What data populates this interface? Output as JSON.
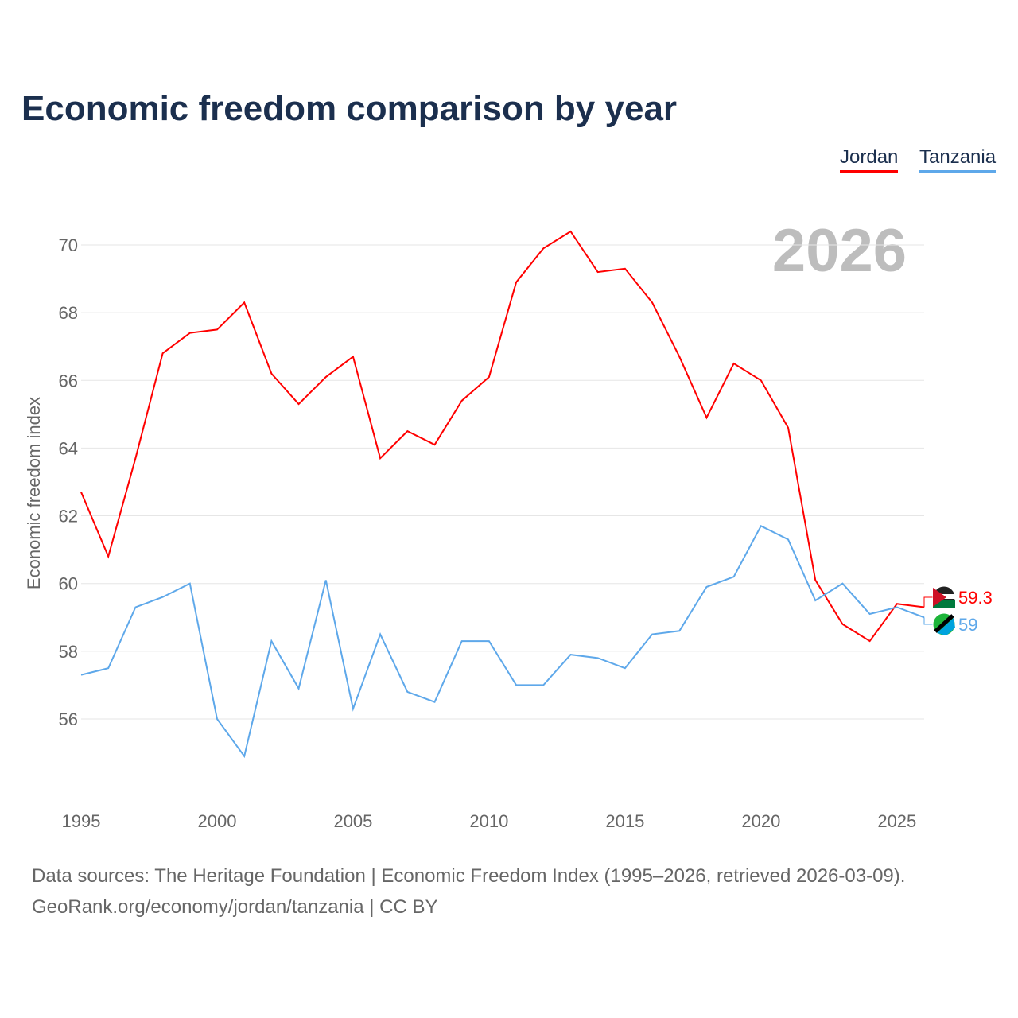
{
  "chart_data": {
    "type": "line",
    "title": "Economic freedom comparison by year",
    "xlabel": "",
    "ylabel": "Economic freedom index",
    "year_label": "2026",
    "x": [
      1995,
      1996,
      1997,
      1998,
      1999,
      2000,
      2001,
      2002,
      2003,
      2004,
      2005,
      2006,
      2007,
      2008,
      2009,
      2010,
      2011,
      2012,
      2013,
      2014,
      2015,
      2016,
      2017,
      2018,
      2019,
      2020,
      2021,
      2022,
      2023,
      2024,
      2025,
      2026
    ],
    "xlim": [
      1995,
      2026
    ],
    "ylim": [
      54,
      71.5
    ],
    "x_ticks": [
      1995,
      2000,
      2005,
      2010,
      2015,
      2020,
      2025
    ],
    "y_ticks": [
      56,
      58,
      60,
      62,
      64,
      66,
      68,
      70
    ],
    "grid": true,
    "legend": "top-right",
    "series": [
      {
        "name": "Jordan",
        "color": "#ff0000",
        "end_label": "59.3",
        "values": [
          62.7,
          60.8,
          63.7,
          66.8,
          67.4,
          67.5,
          68.3,
          66.2,
          65.3,
          66.1,
          66.7,
          63.7,
          64.5,
          64.1,
          65.4,
          66.1,
          68.9,
          69.9,
          70.4,
          69.2,
          69.3,
          68.3,
          66.7,
          64.9,
          66.5,
          66.0,
          64.6,
          60.1,
          58.8,
          58.3,
          59.4,
          59.3
        ]
      },
      {
        "name": "Tanzania",
        "color": "#5ea8ea",
        "end_label": "59",
        "values": [
          57.3,
          57.5,
          59.3,
          59.6,
          60.0,
          56.0,
          54.9,
          58.3,
          56.9,
          60.1,
          56.3,
          58.5,
          56.8,
          56.5,
          58.3,
          58.3,
          57.0,
          57.0,
          57.9,
          57.8,
          57.5,
          58.5,
          58.6,
          59.9,
          60.2,
          61.7,
          61.3,
          59.5,
          60.0,
          59.1,
          59.3,
          59.0
        ]
      }
    ]
  },
  "footer": {
    "line1": "Data sources: The Heritage Foundation | Economic Freedom Index (1995–2026, retrieved 2026-03-09).",
    "line2": "GeoRank.org/economy/jordan/tanzania | CC BY"
  }
}
